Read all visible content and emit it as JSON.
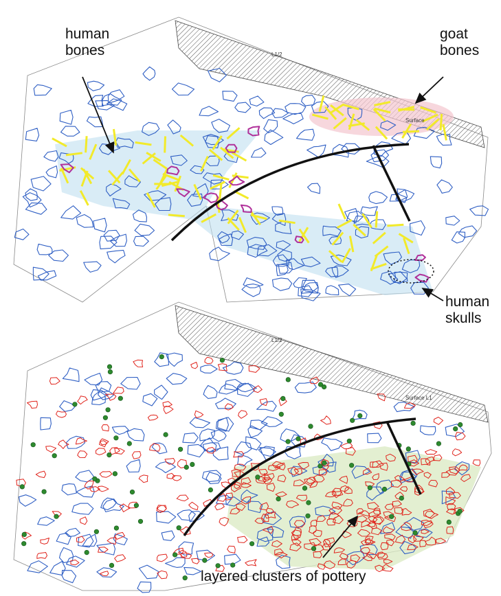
{
  "top_panel": {
    "labels": {
      "human_bones": [
        "human",
        "bones"
      ],
      "goat_bones": [
        "goat",
        "bones"
      ],
      "human_skulls": [
        "human",
        "skulls"
      ]
    },
    "plan_text": [
      "L1/2",
      "Surface"
    ]
  },
  "bottom_panel": {
    "label": "layered clusters of pottery",
    "plan_text": [
      "L1/2",
      "Surface L1"
    ]
  }
}
